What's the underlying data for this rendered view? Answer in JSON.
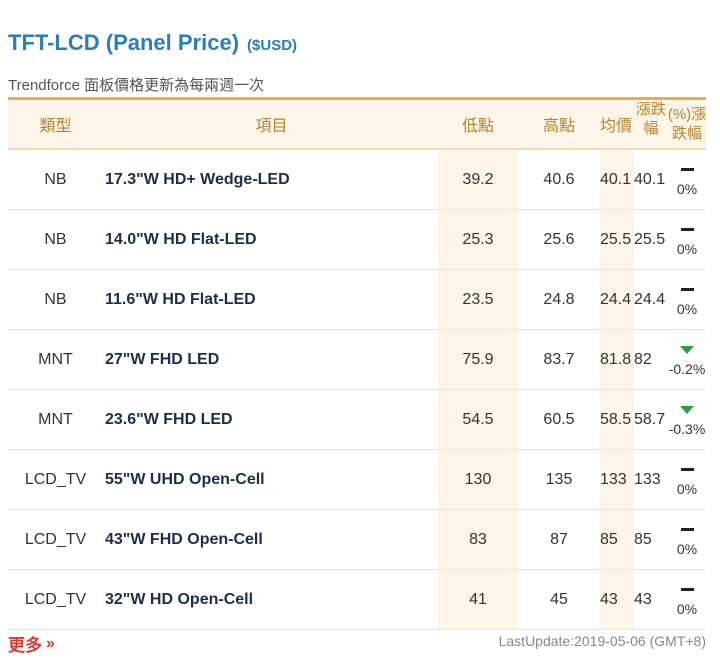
{
  "header": {
    "title": "TFT-LCD (Panel Price)",
    "unit": "($USD)",
    "subtitle": "Trendforce 面板價格更新為每兩週一次"
  },
  "columns": {
    "type": "類型",
    "item": "項目",
    "low": "低點",
    "high": "高點",
    "avg": "均價",
    "last_line1": "漲跌",
    "last_line2": "幅",
    "chg_line1": "(%)漲",
    "chg_line2": "跌幅"
  },
  "rows": [
    {
      "type": "NB",
      "item": "17.3\"W HD+ Wedge-LED",
      "low": "39.2",
      "high": "40.6",
      "avg": "40.1",
      "last": "40.1",
      "trend": "flat",
      "chg": "0%"
    },
    {
      "type": "NB",
      "item": "14.0\"W HD Flat-LED",
      "low": "25.3",
      "high": "25.6",
      "avg": "25.5",
      "last": "25.5",
      "trend": "flat",
      "chg": "0%"
    },
    {
      "type": "NB",
      "item": "11.6\"W HD Flat-LED",
      "low": "23.5",
      "high": "24.8",
      "avg": "24.4",
      "last": "24.4",
      "trend": "flat",
      "chg": "0%"
    },
    {
      "type": "MNT",
      "item": "27\"W FHD LED",
      "low": "75.9",
      "high": "83.7",
      "avg": "81.8",
      "last": "82",
      "trend": "down",
      "chg": "-0.2%"
    },
    {
      "type": "MNT",
      "item": "23.6\"W FHD LED",
      "low": "54.5",
      "high": "60.5",
      "avg": "58.5",
      "last": "58.7",
      "trend": "down",
      "chg": "-0.3%"
    },
    {
      "type": "LCD_TV",
      "item": "55\"W UHD Open-Cell",
      "low": "130",
      "high": "135",
      "avg": "133",
      "last": "133",
      "trend": "flat",
      "chg": "0%"
    },
    {
      "type": "LCD_TV",
      "item": "43\"W FHD Open-Cell",
      "low": "83",
      "high": "87",
      "avg": "85",
      "last": "85",
      "trend": "flat",
      "chg": "0%"
    },
    {
      "type": "LCD_TV",
      "item": "32\"W HD Open-Cell",
      "low": "41",
      "high": "45",
      "avg": "43",
      "last": "43",
      "trend": "flat",
      "chg": "0%"
    }
  ],
  "footer": {
    "more_label": "更多",
    "more_icon": "double-chevron-right-icon",
    "last_update": "LastUpdate:2019-05-06 (GMT+8)"
  },
  "colors": {
    "title": "#2a7fb8",
    "header_border": "#f3a64a",
    "header_text": "#b5832d",
    "more": "#d63c2f",
    "down": "#27a33a"
  }
}
